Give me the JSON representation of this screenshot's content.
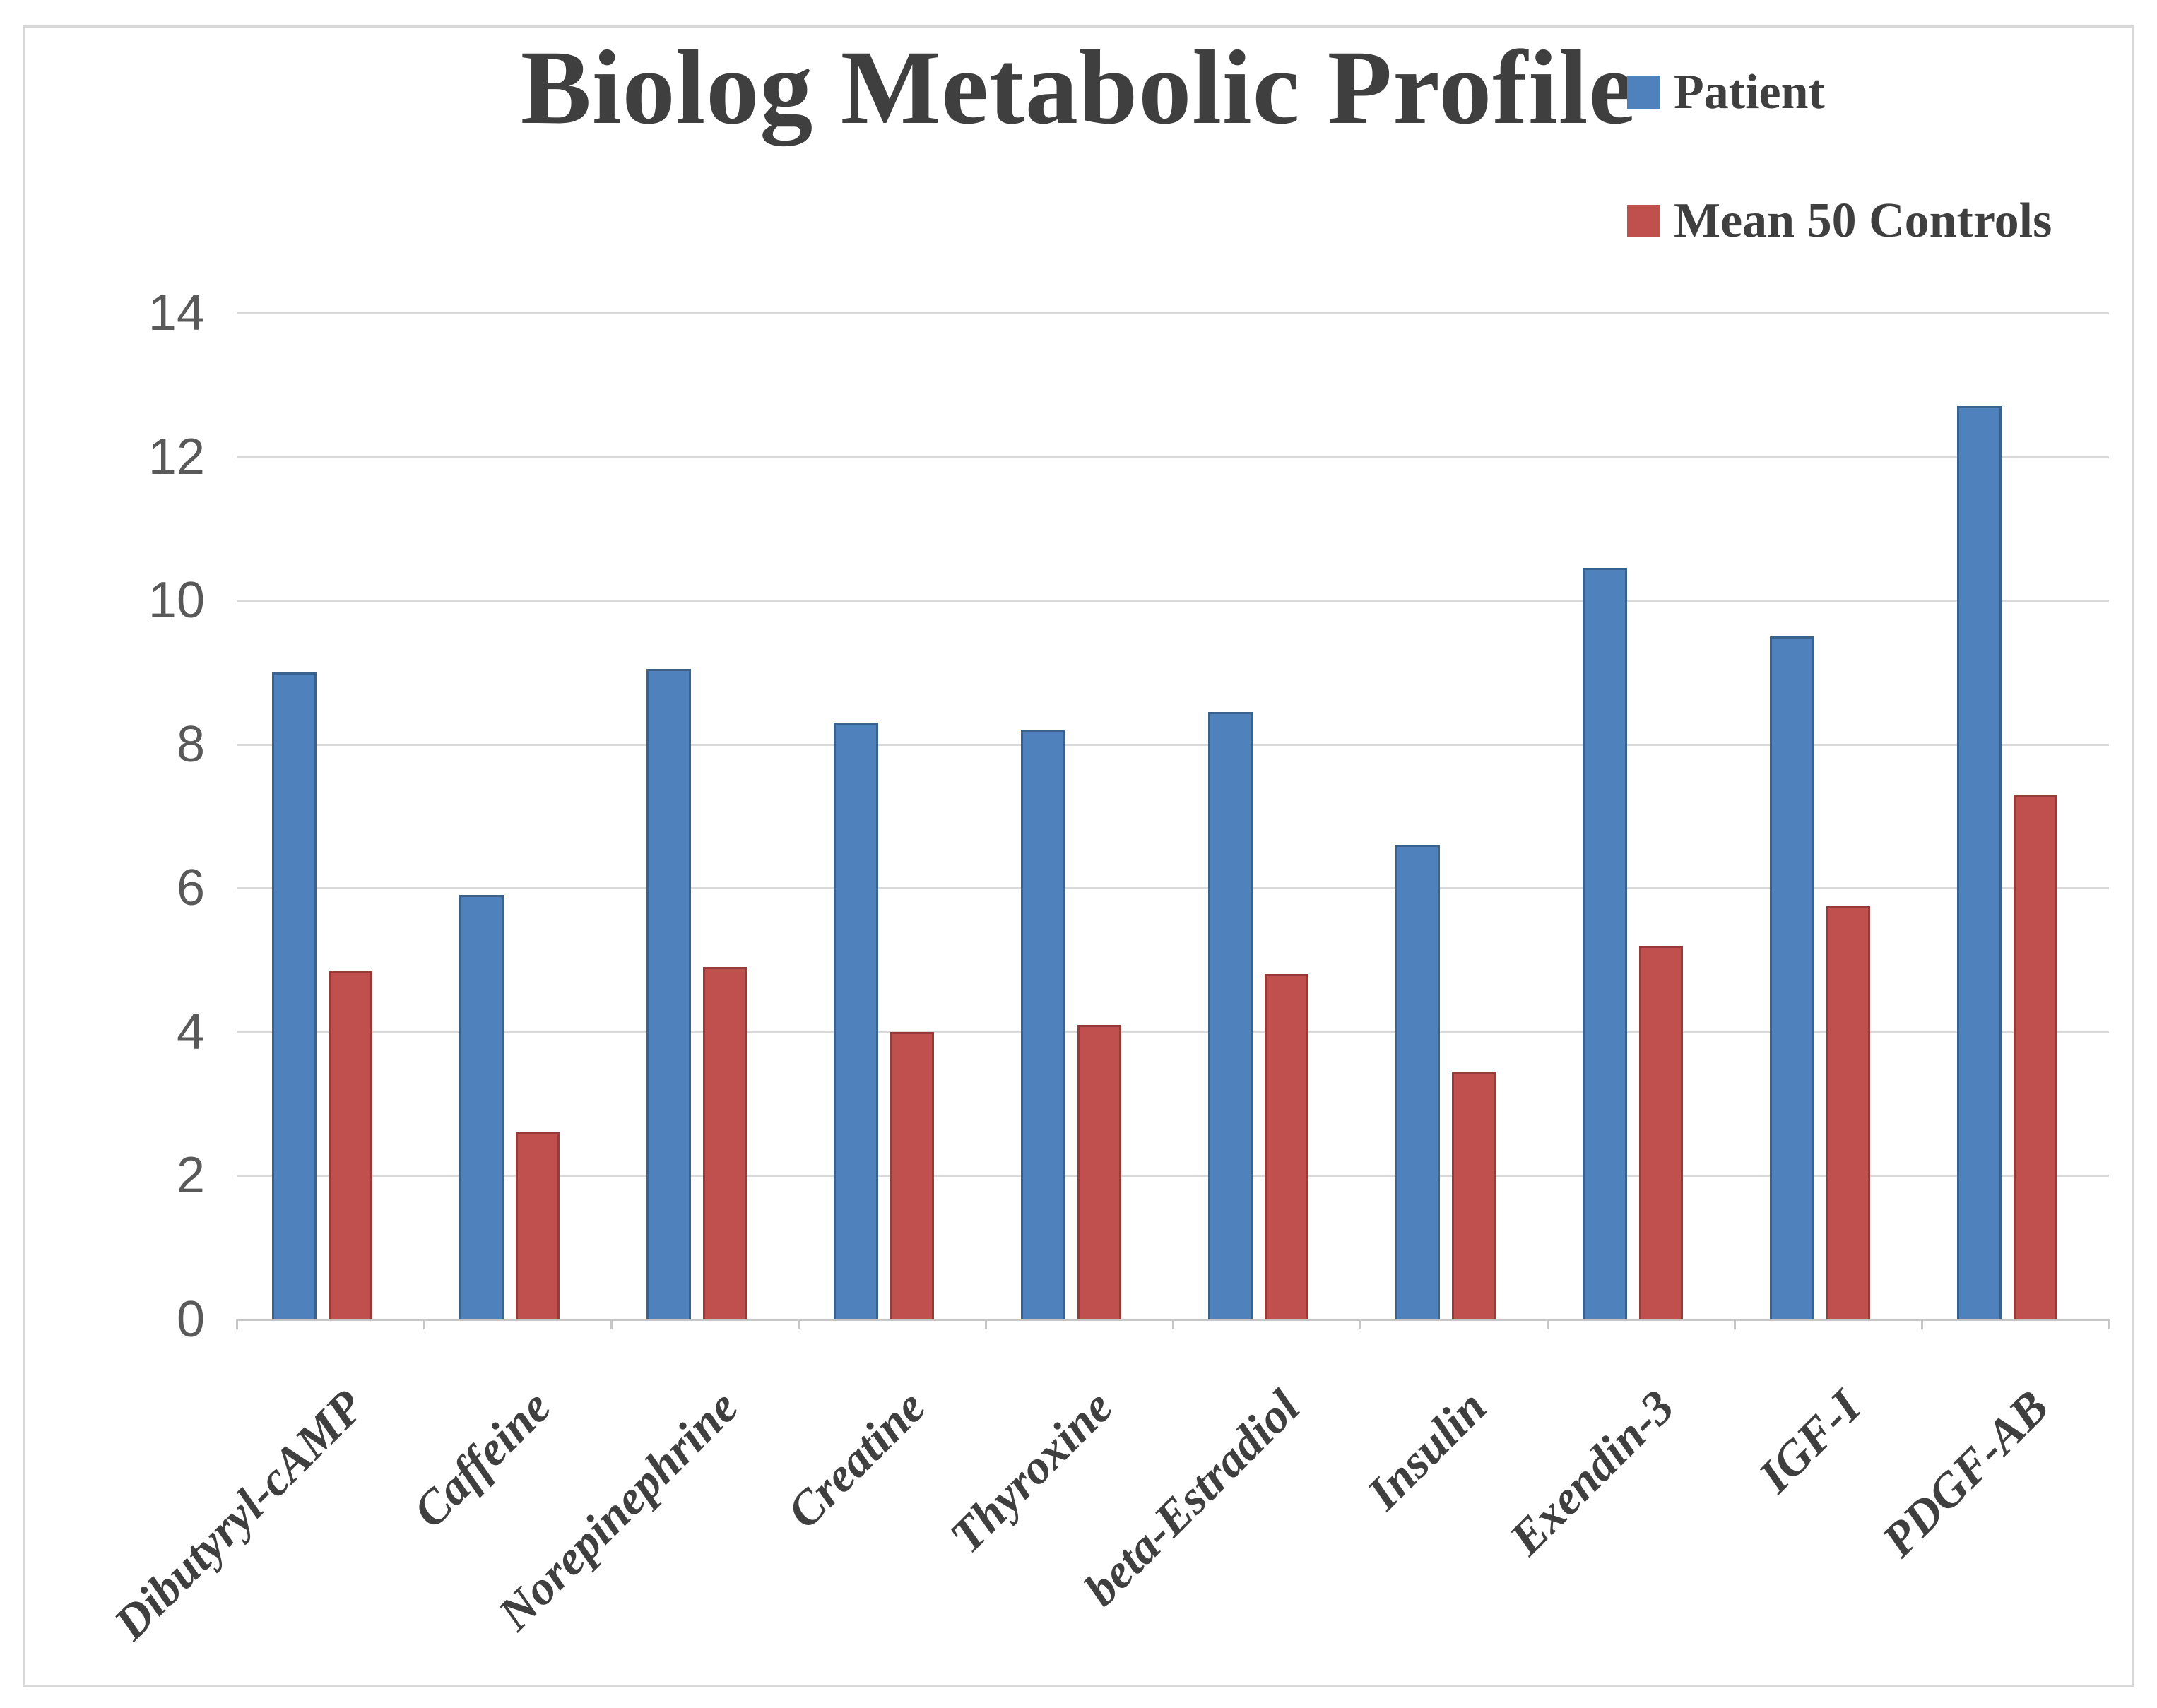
{
  "title": "Biolog Metabolic Profile",
  "legend": {
    "items": [
      {
        "label": "Patient",
        "color": "#4F81BD"
      },
      {
        "label": "Mean 50 Controls",
        "color": "#C0504D"
      }
    ]
  },
  "chart_data": {
    "type": "bar",
    "title": "Biolog Metabolic Profile",
    "categories": [
      "Dibutyryl-cAMP",
      "Caffeine",
      "Norepinephrine",
      "Creatine",
      "Thyroxine",
      "beta-Estradiol",
      "Insulin",
      "Exendin-3",
      "IGF-I",
      "PDGF-AB"
    ],
    "series": [
      {
        "name": "Patient",
        "color": "#4F81BD",
        "border_color": "#3A628F",
        "values": [
          9.0,
          5.9,
          9.05,
          8.3,
          8.2,
          8.45,
          6.6,
          10.45,
          9.5,
          12.7
        ]
      },
      {
        "name": "Mean 50 Controls",
        "color": "#C0504D",
        "border_color": "#953B38",
        "values": [
          4.85,
          2.6,
          4.9,
          4.0,
          4.1,
          4.8,
          3.45,
          5.2,
          5.75,
          7.3
        ]
      }
    ],
    "xlabel": "",
    "ylabel": "",
    "ylim": [
      0,
      14
    ],
    "ytick_step": 2,
    "ytick_labels": [
      "0",
      "2",
      "4",
      "6",
      "8",
      "10",
      "12",
      "14"
    ],
    "grid": true,
    "legend_position": "top-right",
    "gridline_color": "#d9d9d9",
    "axis_line_color": "#c6c6c6",
    "tick_label_color": "#595959",
    "text_color": "#3f3f3f"
  }
}
